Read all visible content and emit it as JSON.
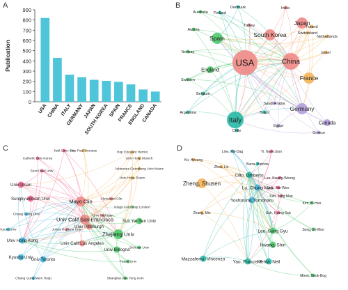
{
  "panels": {
    "a": {
      "letter": "A"
    },
    "b": {
      "letter": "B"
    },
    "c": {
      "letter": "C"
    },
    "d": {
      "letter": "D"
    }
  },
  "colors": {
    "bar": "#4ec5d9",
    "red": "#f08a86",
    "green": "#4cc96a",
    "teal": "#27b9a6",
    "orange": "#f4b45c",
    "purple": "#b39ddb",
    "pink": "#f06292",
    "blue": "#3fb4d8",
    "lightgreen": "#8bd48b"
  },
  "chart_data": [
    {
      "type": "bar",
      "categories": [
        "USA",
        "CHINA",
        "ITALY",
        "GERMANY",
        "JAPAN",
        "SOUTH KOREA",
        "SPAIN",
        "FRANCE",
        "ENGLAND",
        "CANADA"
      ],
      "values": [
        820,
        430,
        265,
        240,
        215,
        205,
        195,
        170,
        120,
        100
      ],
      "ylabel": "Publication",
      "ylim": [
        0,
        900
      ],
      "yticks": [
        0,
        100,
        200,
        300,
        400,
        500,
        600,
        700,
        800,
        900
      ],
      "grid": false
    },
    {
      "type": "network",
      "nodes": [
        {
          "label": "USA",
          "group": "red",
          "size": 5
        },
        {
          "label": "China",
          "group": "red",
          "size": 4
        },
        {
          "label": "Japan",
          "group": "red",
          "size": 3
        },
        {
          "label": "South Korea",
          "group": "red",
          "size": 3
        },
        {
          "label": "India",
          "group": "red",
          "size": 1
        },
        {
          "label": "Denmark",
          "group": "teal",
          "size": 1
        },
        {
          "label": "Finland",
          "group": "teal",
          "size": 1
        },
        {
          "label": "Australia",
          "group": "green",
          "size": 1
        },
        {
          "label": "Turkey",
          "group": "red",
          "size": 1
        },
        {
          "label": "Poland",
          "group": "orange",
          "size": 1
        },
        {
          "label": "Austria",
          "group": "green",
          "size": 1
        },
        {
          "label": "Spain",
          "group": "green",
          "size": 3
        },
        {
          "label": "Switzerland",
          "group": "orange",
          "size": 1
        },
        {
          "label": "Netherlands",
          "group": "orange",
          "size": 1
        },
        {
          "label": "Israel",
          "group": "orange",
          "size": 1
        },
        {
          "label": "Norway",
          "group": "green",
          "size": 1
        },
        {
          "label": "England",
          "group": "green",
          "size": 2
        },
        {
          "label": "France",
          "group": "orange",
          "size": 3
        },
        {
          "label": "Sweden",
          "group": "green",
          "size": 1
        },
        {
          "label": "Belgium",
          "group": "teal",
          "size": 1
        },
        {
          "label": "Saudi Arabia",
          "group": "purple",
          "size": 1
        },
        {
          "label": "Germany",
          "group": "purple",
          "size": 3
        },
        {
          "label": "Argentina",
          "group": "teal",
          "size": 1
        },
        {
          "label": "Brazil",
          "group": "teal",
          "size": 1
        },
        {
          "label": "Italy",
          "group": "teal",
          "size": 4
        },
        {
          "label": "Canada",
          "group": "purple",
          "size": 2
        },
        {
          "label": "Chile",
          "group": "teal",
          "size": 1
        },
        {
          "label": "Egypt",
          "group": "purple",
          "size": 1
        },
        {
          "label": "Greece",
          "group": "purple",
          "size": 1
        }
      ]
    },
    {
      "type": "network",
      "nodes": [
        {
          "label": "Natl Canc Ctr",
          "group": "pink",
          "size": 1
        },
        {
          "label": "Hop Paul Brousse",
          "group": "orange",
          "size": 1
        },
        {
          "label": "Hop Edouard Herriot",
          "group": "orange",
          "size": 1
        },
        {
          "label": "Catholic Univ Korea",
          "group": "pink",
          "size": 1
        },
        {
          "label": "Univ Hosp Munich",
          "group": "orange",
          "size": 1
        },
        {
          "label": "Univ Ulsan",
          "group": "pink",
          "size": 2
        },
        {
          "label": "Seoul Natl Univ",
          "group": "pink",
          "size": 1
        },
        {
          "label": "Johannes Gutenberg Univ Mainz",
          "group": "orange",
          "size": 1
        },
        {
          "label": "Univ Hosp Essen",
          "group": "orange",
          "size": 1
        },
        {
          "label": "Sungkyunkwan Univ",
          "group": "pink",
          "size": 2
        },
        {
          "label": "Mayo Clin",
          "group": "red",
          "size": 3
        },
        {
          "label": "Cleveland Clin",
          "group": "red",
          "size": 1
        },
        {
          "label": "Kings Coll Hosp London",
          "group": "lightgreen",
          "size": 1
        },
        {
          "label": "Chang Gung Univ",
          "group": "blue",
          "size": 1
        },
        {
          "label": "Univ Calif San Francisco",
          "group": "red",
          "size": 3
        },
        {
          "label": "Univ Pittsburgh",
          "group": "red",
          "size": 2
        },
        {
          "label": "Sun Yat Sen Univ",
          "group": "green",
          "size": 2
        },
        {
          "label": "Johns Hopkins Univ",
          "group": "red",
          "size": 1
        },
        {
          "label": "Univ Michigan",
          "group": "red",
          "size": 1
        },
        {
          "label": "Kyoto Univ",
          "group": "blue",
          "size": 1
        },
        {
          "label": "Univ Calif Los Angeles",
          "group": "red",
          "size": 2
        },
        {
          "label": "Zhejiang Univ",
          "group": "green",
          "size": 3
        },
        {
          "label": "Univ Hong Kong",
          "group": "blue",
          "size": 2
        },
        {
          "label": "Sichuan Univ",
          "group": "green",
          "size": 1
        },
        {
          "label": "Univ Bologna",
          "group": "green",
          "size": 2
        },
        {
          "label": "Kyushu Univ",
          "group": "blue",
          "size": 2
        },
        {
          "label": "Univ Toronto",
          "group": "blue",
          "size": 2
        },
        {
          "label": "Fudan Univ",
          "group": "green",
          "size": 1
        },
        {
          "label": "Shanghai Jiao Tong Univ",
          "group": "green",
          "size": 1
        },
        {
          "label": "Chang Gung Mem Hosp",
          "group": "blue",
          "size": 1
        }
      ]
    },
    {
      "type": "network",
      "nodes": [
        {
          "label": "Line, Pal-Dag",
          "group": "blue",
          "size": 1
        },
        {
          "label": "Yi, Nam-Joon",
          "group": "pink",
          "size": 1
        },
        {
          "label": "Ko, Hyoung",
          "group": "orange",
          "size": 1
        },
        {
          "label": "Zheng, Shusen",
          "group": "orange",
          "size": 3
        },
        {
          "label": "Zhou, Lin",
          "group": "orange",
          "size": 1
        },
        {
          "label": "Burra, Patrizia",
          "group": "teal",
          "size": 1
        },
        {
          "label": "Cillo, Umberto",
          "group": "teal",
          "size": 2
        },
        {
          "label": "Lee, Kwang-Woong",
          "group": "pink",
          "size": 1
        },
        {
          "label": "Joh, Jae-Won",
          "group": "pink",
          "size": 1
        },
        {
          "label": "Kim, Jong Man",
          "group": "pink",
          "size": 1
        },
        {
          "label": "Lo, Chung Mau",
          "group": "blue",
          "size": 2
        },
        {
          "label": "Suh, Kyung-Suk",
          "group": "pink",
          "size": 1
        },
        {
          "label": "Zhang, Min",
          "group": "orange",
          "size": 1
        },
        {
          "label": "Yoshizumi, Tomoharu",
          "group": "blue",
          "size": 2
        },
        {
          "label": "Kim, Ki-Hun",
          "group": "green",
          "size": 1
        },
        {
          "label": "Lee, Sung Gyu",
          "group": "green",
          "size": 2
        },
        {
          "label": "Hwang, Shin",
          "group": "green",
          "size": 2
        },
        {
          "label": "Song, Gi-Won",
          "group": "green",
          "size": 1
        },
        {
          "label": "Mazzaferro, Vincenzo",
          "group": "teal",
          "size": 2
        },
        {
          "label": "Yao, Francis Y.",
          "group": "teal",
          "size": 2
        },
        {
          "label": "Mehta, Neil",
          "group": "teal",
          "size": 2
        },
        {
          "label": "Moon, Deok-Bog",
          "group": "green",
          "size": 1
        }
      ]
    }
  ]
}
